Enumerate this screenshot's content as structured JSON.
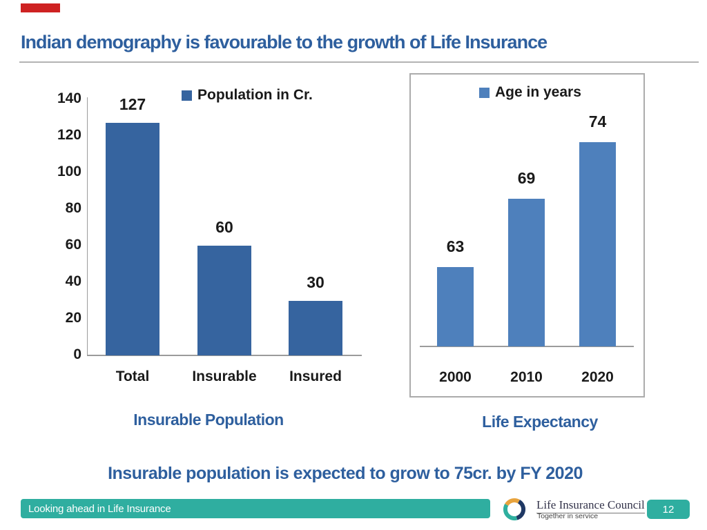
{
  "slide_title": "Indian demography is favourable to the growth of Life Insurance",
  "statement": "Insurable population is expected to grow to 75cr. by FY 2020",
  "captions": {
    "left": "Insurable Population",
    "right": "Life Expectancy"
  },
  "chart_data": [
    {
      "id": "insurable-population",
      "type": "bar",
      "title": "Insurable Population",
      "legend": [
        {
          "label": "Population in Cr.",
          "color": "#36649F"
        }
      ],
      "legend_position": "top",
      "categories": [
        "Total",
        "Insurable",
        "Insured"
      ],
      "values": [
        127,
        60,
        30
      ],
      "data_labels": [
        "127",
        "60",
        "30"
      ],
      "yticks": [
        140,
        120,
        100,
        80,
        60,
        40,
        20,
        0
      ],
      "ylim": [
        0,
        140
      ],
      "grid": false,
      "bar_color": "#36649F"
    },
    {
      "id": "life-expectancy",
      "type": "bar",
      "title": "Life Expectancy",
      "legend": [
        {
          "label": "Age in years",
          "color": "#4E80BC"
        }
      ],
      "legend_position": "top",
      "categories": [
        "2000",
        "2010",
        "2020"
      ],
      "values": [
        63,
        69,
        74
      ],
      "data_labels": [
        "63",
        "69",
        "74"
      ],
      "yticks": [],
      "ylim": [
        56,
        84
      ],
      "grid": false,
      "yaxis_visible": false,
      "bar_color": "#4E80BC"
    }
  ],
  "footer": {
    "banner_text": "Looking ahead in Life Insurance",
    "org_name": "Life Insurance Council",
    "org_tagline": "Together in service",
    "page_number": "12"
  },
  "colors": {
    "title_blue": "#2E5F9E",
    "bar_dark_blue": "#36649F",
    "bar_light_blue": "#4E80BC",
    "footer_teal": "#2FAEA0",
    "accent_red": "#CE2222",
    "chart_text": "#1A1A1A",
    "axis_gray": "#9B9B9B"
  }
}
